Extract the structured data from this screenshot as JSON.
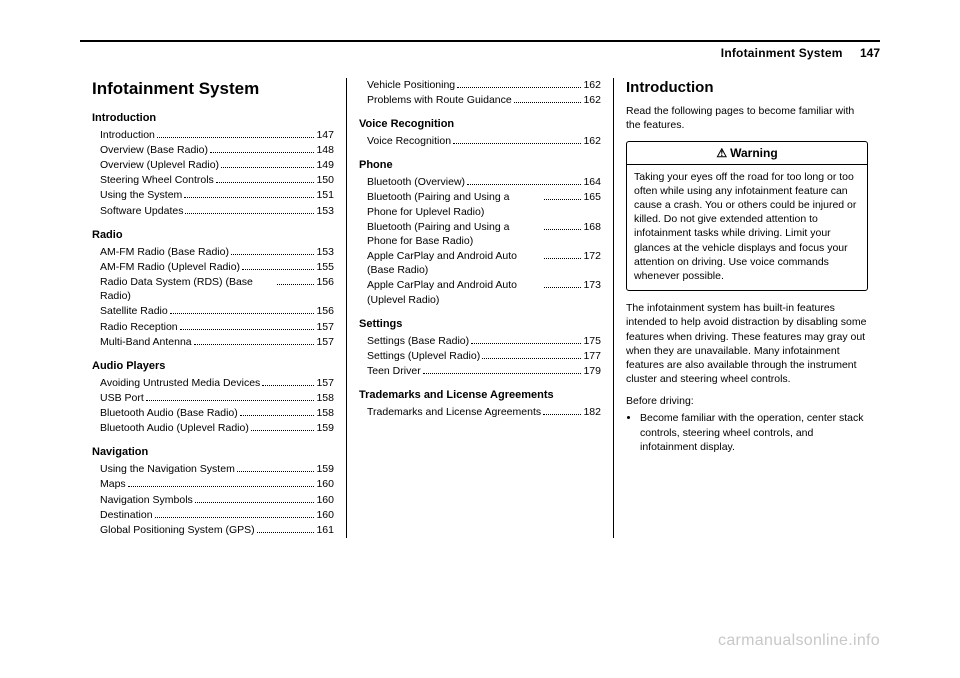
{
  "header": {
    "chapter": "Infotainment System",
    "page_number": "147"
  },
  "col1": {
    "chapter_title": "Infotainment System",
    "sections": [
      {
        "heading": "Introduction",
        "entries": [
          {
            "label": "Introduction",
            "page": "147"
          },
          {
            "label": "Overview (Base Radio)",
            "page": "148"
          },
          {
            "label": "Overview (Uplevel Radio)",
            "page": "149"
          },
          {
            "label": "Steering Wheel Controls",
            "page": "150"
          },
          {
            "label": "Using the System",
            "page": "151"
          },
          {
            "label": "Software Updates",
            "page": "153"
          }
        ]
      },
      {
        "heading": "Radio",
        "entries": [
          {
            "label": "AM-FM Radio (Base Radio)",
            "page": "153"
          },
          {
            "label": "AM-FM Radio (Uplevel Radio)",
            "page": "155"
          },
          {
            "label": "Radio Data System (RDS) (Base Radio)",
            "page": "156"
          },
          {
            "label": "Satellite Radio",
            "page": "156"
          },
          {
            "label": "Radio Reception",
            "page": "157"
          },
          {
            "label": "Multi-Band Antenna",
            "page": "157"
          }
        ]
      },
      {
        "heading": "Audio Players",
        "entries": [
          {
            "label": "Avoiding Untrusted Media Devices",
            "page": "157"
          },
          {
            "label": "USB Port",
            "page": "158"
          },
          {
            "label": "Bluetooth Audio (Base Radio)",
            "page": "158"
          },
          {
            "label": "Bluetooth Audio (Uplevel Radio)",
            "page": "159"
          }
        ]
      },
      {
        "heading": "Navigation",
        "entries": [
          {
            "label": "Using the Navigation System",
            "page": "159"
          },
          {
            "label": "Maps",
            "page": "160"
          },
          {
            "label": "Navigation Symbols",
            "page": "160"
          },
          {
            "label": "Destination",
            "page": "160"
          },
          {
            "label": "Global Positioning System (GPS)",
            "page": "161"
          }
        ]
      }
    ]
  },
  "col2": {
    "lead_entries": [
      {
        "label": "Vehicle Positioning",
        "page": "162"
      },
      {
        "label": "Problems with Route Guidance",
        "page": "162"
      }
    ],
    "sections": [
      {
        "heading": "Voice Recognition",
        "entries": [
          {
            "label": "Voice Recognition",
            "page": "162"
          }
        ]
      },
      {
        "heading": "Phone",
        "entries": [
          {
            "label": "Bluetooth (Overview)",
            "page": "164"
          },
          {
            "label": "Bluetooth (Pairing and Using a Phone for Uplevel Radio)",
            "page": "165"
          },
          {
            "label": "Bluetooth (Pairing and Using a Phone for Base Radio)",
            "page": "168"
          },
          {
            "label": "Apple CarPlay and Android Auto (Base Radio)",
            "page": "172"
          },
          {
            "label": "Apple CarPlay and Android Auto (Uplevel Radio)",
            "page": "173"
          }
        ]
      },
      {
        "heading": "Settings",
        "entries": [
          {
            "label": "Settings (Base Radio)",
            "page": "175"
          },
          {
            "label": "Settings (Uplevel Radio)",
            "page": "177"
          },
          {
            "label": "Teen Driver",
            "page": "179"
          }
        ]
      },
      {
        "heading": "Trademarks and License Agreements",
        "entries": [
          {
            "label": "Trademarks and License Agreements",
            "page": "182"
          }
        ]
      }
    ]
  },
  "col3": {
    "section_title": "Introduction",
    "intro_text": "Read the following pages to become familiar with the features.",
    "warning_label": "Warning",
    "warning_text": "Taking your eyes off the road for too long or too often while using any infotainment feature can cause a crash. You or others could be injured or killed. Do not give extended attention to infotainment tasks while driving. Limit your glances at the vehicle displays and focus your attention on driving. Use voice commands whenever possible.",
    "body_text": "The infotainment system has built-in features intended to help avoid distraction by disabling some features when driving. These features may gray out when they are unavailable. Many infotainment features are also available through the instrument cluster and steering wheel controls.",
    "before_driving_label": "Before driving:",
    "bullets": [
      "Become familiar with the operation, center stack controls, steering wheel controls, and infotainment display."
    ]
  },
  "watermark": "carmanualsonline.info"
}
